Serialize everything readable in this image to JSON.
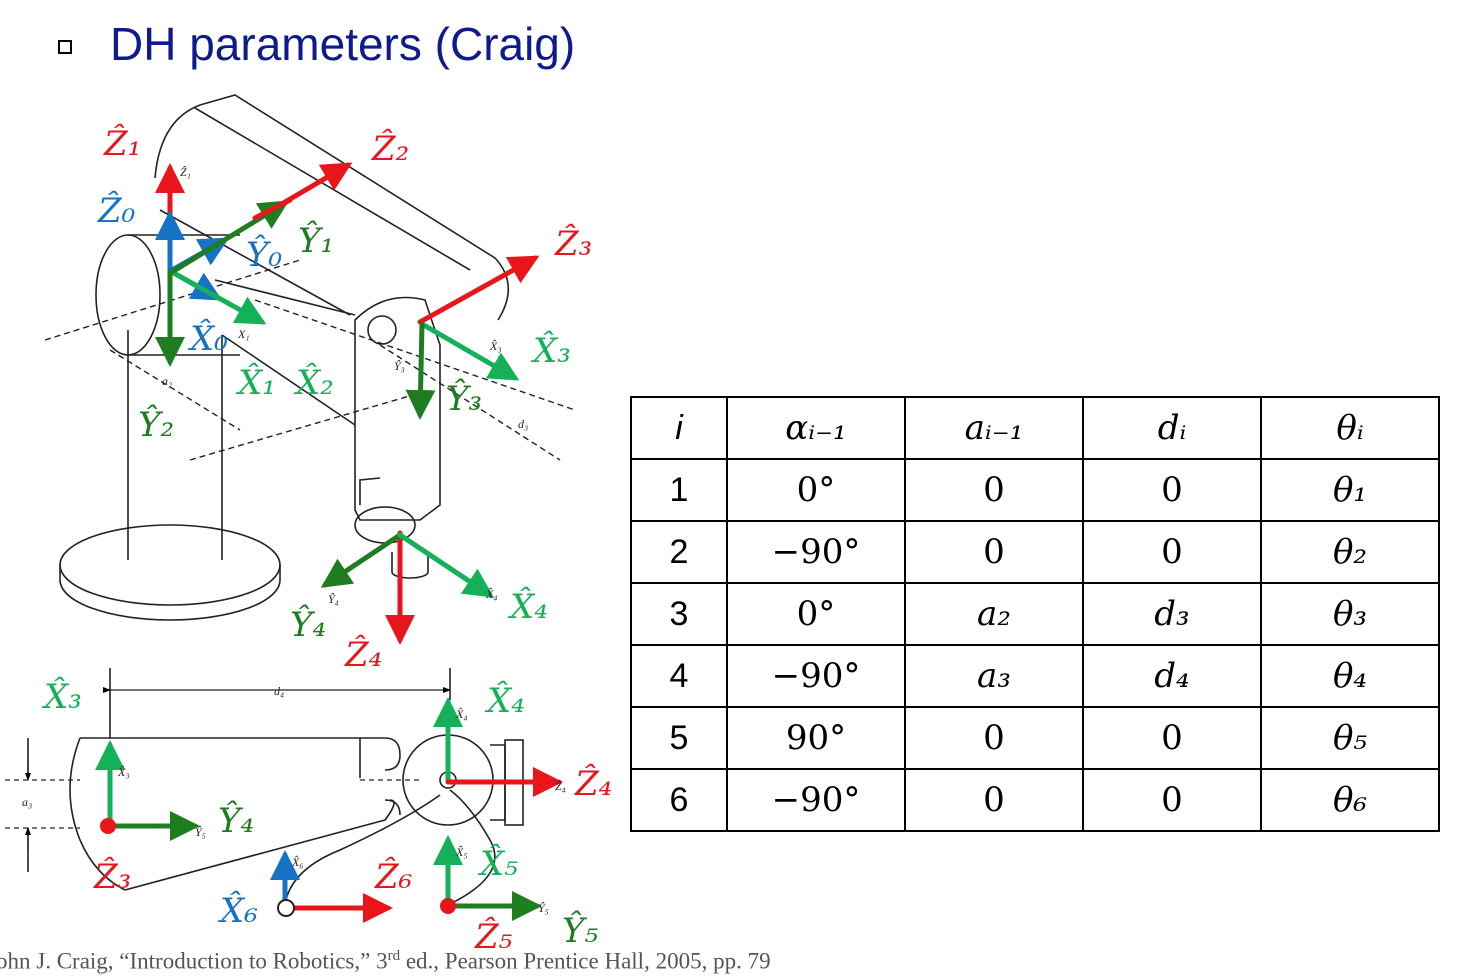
{
  "slide": {
    "title": "DH parameters (Craig)",
    "citation": {
      "pre": "ohn J. Craig, “Introduction to Robotics,” 3",
      "sup": "rd",
      "post": " ed., Pearson Prentice Hall, 2005, pp. 79"
    }
  },
  "colors": {
    "red": "#e8161b",
    "green": "#1e7d1e",
    "lightgreen": "#14b159",
    "blue": "#1572c4",
    "title": "#0d1b8c"
  },
  "diagram": {
    "labels": {
      "z1": "Ẑ₁",
      "z0": "Ẑ₀",
      "z2": "Ẑ₂",
      "z3": "Ẑ₃",
      "y0": "Ŷ₀",
      "y1": "Ŷ₁",
      "x0": "X̂₀",
      "x1": "X̂₁",
      "x2": "X̂₂",
      "y2": "Ŷ₂",
      "x3": "X̂₃",
      "y3": "Ŷ₃",
      "y4": "Ŷ₄",
      "x4": "X̂₄",
      "z4": "Ẑ₄",
      "b_x3": "X̂₃",
      "b_x4": "X̂₄",
      "b_z4": "Ẑ₄",
      "b_y4": "Ŷ₄",
      "b_z3": "Ẑ₃",
      "b_x6": "X̂₆",
      "b_z6": "Ẑ₆",
      "b_x5": "X̂₅",
      "b_y5": "Ŷ₅",
      "b_z5": "Ẑ₅"
    },
    "small_labels": {
      "a2": "a₂",
      "d3": "d₃",
      "d4": "d₄",
      "a3": "a₃",
      "sz1": "Ẑ₁",
      "sx1": "X₁",
      "sy3": "Ŷ₃",
      "sx3": "X̂₃",
      "sy4": "Ŷ₄",
      "sx4": "X̂₄",
      "bsx3": "X̂₃",
      "bsy5": "Ŷ₅",
      "bsx4": "X̂₄",
      "bsz4": "Ẑ₄",
      "bsx6": "X̂₆",
      "bsx5": "X̂₅",
      "bsy5b": "Ŷ₅"
    }
  },
  "table": {
    "headers": [
      "i",
      "αᵢ₋₁",
      "aᵢ₋₁",
      "dᵢ",
      "θᵢ"
    ],
    "rows": [
      [
        "1",
        "0°",
        "0",
        "0",
        "θ₁"
      ],
      [
        "2",
        "−90°",
        "0",
        "0",
        "θ₂"
      ],
      [
        "3",
        "0°",
        "a₂",
        "d₃",
        "θ₃"
      ],
      [
        "4",
        "−90°",
        "a₃",
        "d₄",
        "θ₄"
      ],
      [
        "5",
        "90°",
        "0",
        "0",
        "θ₅"
      ],
      [
        "6",
        "−90°",
        "0",
        "0",
        "θ₆"
      ]
    ]
  }
}
